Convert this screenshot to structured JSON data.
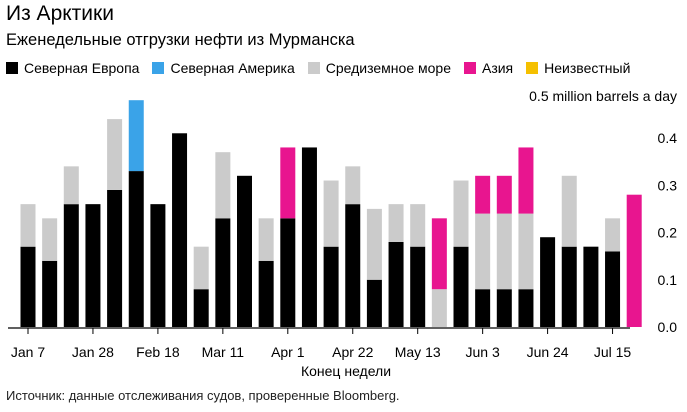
{
  "header": {
    "title": "Из Арктики",
    "subtitle": "Еженедельные отгрузки нефти из Мурманска"
  },
  "footer": {
    "source": "Источник: данные отслеживания судов, проверенные Bloomberg."
  },
  "chart_data": {
    "type": "bar",
    "stacked": true,
    "unit_label": "0.5 million barrels a day",
    "xlabel": "Конец недели",
    "ylim": [
      0,
      0.5
    ],
    "yticks": [
      0.0,
      0.1,
      0.2,
      0.3,
      0.4
    ],
    "ytick_labels": [
      "0.0",
      "0.1",
      "0.2",
      "0.3",
      "0.4"
    ],
    "x_tick_labels": [
      {
        "index": 0,
        "label": "Jan 7"
      },
      {
        "index": 3,
        "label": "Jan 28"
      },
      {
        "index": 6,
        "label": "Feb 18"
      },
      {
        "index": 9,
        "label": "Mar 11"
      },
      {
        "index": 12,
        "label": "Apr 1"
      },
      {
        "index": 15,
        "label": "Apr 22"
      },
      {
        "index": 18,
        "label": "May 13"
      },
      {
        "index": 21,
        "label": "Jun 3"
      },
      {
        "index": 24,
        "label": "Jun 24"
      },
      {
        "index": 27,
        "label": "Jul 15"
      }
    ],
    "grid": false,
    "legend_position": "top",
    "series": [
      {
        "name": "Северная Европа",
        "color": "#000000",
        "values": [
          0.17,
          0.14,
          0.26,
          0.26,
          0.29,
          0.33,
          0.26,
          0.41,
          0.08,
          0.23,
          0.32,
          0.14,
          0.23,
          0.38,
          0.17,
          0.26,
          0.1,
          0.18,
          0.17,
          0.0,
          0.17,
          0.08,
          0.08,
          0.08,
          0.19,
          0.17,
          0.17,
          0.16,
          0.0
        ]
      },
      {
        "name": "Северная Америка",
        "color": "#3aa3e8",
        "values": [
          0,
          0,
          0,
          0,
          0,
          0.15,
          0,
          0,
          0,
          0,
          0,
          0,
          0,
          0,
          0,
          0,
          0,
          0,
          0,
          0,
          0,
          0,
          0,
          0,
          0,
          0,
          0,
          0,
          0
        ]
      },
      {
        "name": "Средиземное море",
        "color": "#cbcbcb",
        "values": [
          0.09,
          0.09,
          0.08,
          0.0,
          0.15,
          0.0,
          0.0,
          0.0,
          0.09,
          0.14,
          0.0,
          0.09,
          0.0,
          0.0,
          0.14,
          0.08,
          0.15,
          0.08,
          0.09,
          0.08,
          0.14,
          0.16,
          0.16,
          0.16,
          0.0,
          0.15,
          0.0,
          0.07,
          0.0
        ]
      },
      {
        "name": "Азия",
        "color": "#e8158f",
        "values": [
          0,
          0,
          0,
          0,
          0,
          0,
          0,
          0,
          0,
          0,
          0,
          0,
          0.15,
          0,
          0,
          0,
          0,
          0,
          0,
          0.15,
          0,
          0.08,
          0.08,
          0.14,
          0,
          0,
          0,
          0,
          0.28
        ]
      },
      {
        "name": "Неизвестный",
        "color": "#f5c000",
        "values": [
          0,
          0,
          0,
          0,
          0,
          0,
          0,
          0,
          0,
          0,
          0,
          0,
          0,
          0,
          0,
          0,
          0,
          0,
          0,
          0,
          0,
          0,
          0,
          0,
          0,
          0,
          0,
          0,
          0
        ]
      }
    ]
  }
}
